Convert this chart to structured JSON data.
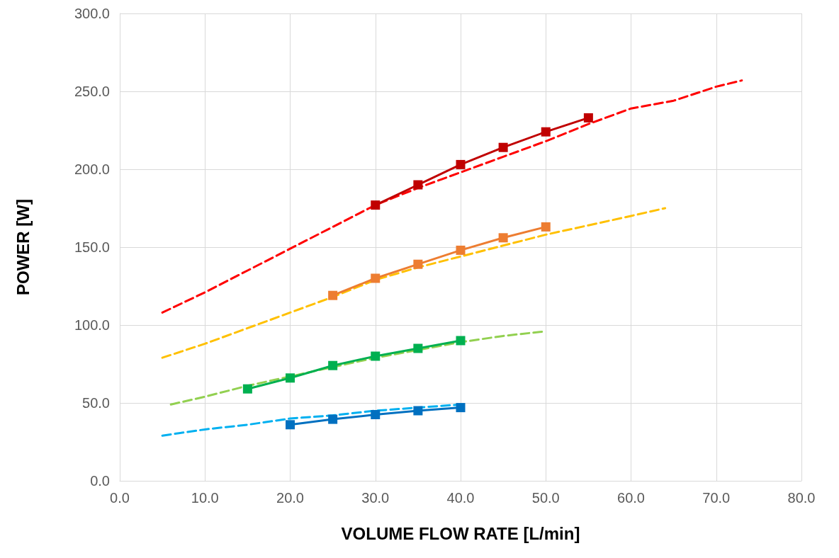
{
  "chart_data": {
    "type": "line",
    "xlabel": "VOLUME FLOW RATE [L/min]",
    "ylabel": "POWER [W]",
    "xlim": [
      0,
      80
    ],
    "ylim": [
      0,
      300
    ],
    "xticks": [
      {
        "value": 0,
        "label": "0.0"
      },
      {
        "value": 10,
        "label": "10.0"
      },
      {
        "value": 20,
        "label": "20.0"
      },
      {
        "value": 30,
        "label": "30.0"
      },
      {
        "value": 40,
        "label": "40.0"
      },
      {
        "value": 50,
        "label": "50.0"
      },
      {
        "value": 60,
        "label": "60.0"
      },
      {
        "value": 70,
        "label": "70.0"
      },
      {
        "value": 80,
        "label": "80.0"
      }
    ],
    "yticks": [
      {
        "value": 0,
        "label": "0.0"
      },
      {
        "value": 50,
        "label": "50.0"
      },
      {
        "value": 100,
        "label": "100.0"
      },
      {
        "value": 150,
        "label": "150.0"
      },
      {
        "value": 200,
        "label": "200.0"
      },
      {
        "value": 250,
        "label": "250.0"
      },
      {
        "value": 300,
        "label": "300.0"
      }
    ],
    "grid": true,
    "series": [
      {
        "color": "#ff0000",
        "line_style": "dashed",
        "marker": "none",
        "x": [
          5,
          10,
          15,
          20,
          25,
          30,
          35,
          40,
          45,
          50,
          55,
          60,
          65,
          70,
          73
        ],
        "values": [
          108,
          121,
          135,
          149,
          163,
          177,
          188,
          198,
          208,
          218,
          229,
          239,
          244,
          253,
          257
        ]
      },
      {
        "color": "#ffc000",
        "line_style": "dashed",
        "marker": "none",
        "x": [
          5,
          10,
          15,
          20,
          25,
          30,
          35,
          40,
          45,
          50,
          55,
          60,
          64
        ],
        "values": [
          79,
          88,
          98,
          108,
          118,
          129,
          137,
          144,
          151,
          158,
          164,
          170,
          175
        ]
      },
      {
        "color": "#92d050",
        "line_style": "dashed",
        "marker": "none",
        "x": [
          6,
          10,
          15,
          20,
          25,
          30,
          35,
          40,
          45,
          50
        ],
        "values": [
          49,
          54,
          61,
          67,
          73,
          79,
          84,
          89,
          93,
          96
        ]
      },
      {
        "color": "#00b0f0",
        "line_style": "dashed",
        "marker": "none",
        "x": [
          5,
          10,
          15,
          20,
          25,
          30,
          35,
          40
        ],
        "values": [
          29,
          33,
          36,
          40,
          42,
          45,
          47,
          49
        ]
      },
      {
        "color": "#c00000",
        "line_style": "solid",
        "marker": "square",
        "x": [
          30,
          35,
          40,
          45,
          50,
          55
        ],
        "values": [
          177,
          190,
          203,
          214,
          224,
          233
        ]
      },
      {
        "color": "#ed7d31",
        "line_style": "solid",
        "marker": "square",
        "x": [
          25,
          30,
          35,
          40,
          45,
          50
        ],
        "values": [
          119,
          130,
          139,
          148,
          156,
          163
        ]
      },
      {
        "color": "#00b050",
        "line_style": "solid",
        "marker": "square",
        "x": [
          15,
          20,
          25,
          30,
          35,
          40
        ],
        "values": [
          59,
          66,
          74,
          80,
          85,
          90
        ]
      },
      {
        "color": "#0070c0",
        "line_style": "solid",
        "marker": "square",
        "x": [
          20,
          25,
          30,
          35,
          40
        ],
        "values": [
          36,
          39.5,
          42.5,
          45,
          47
        ]
      }
    ]
  }
}
